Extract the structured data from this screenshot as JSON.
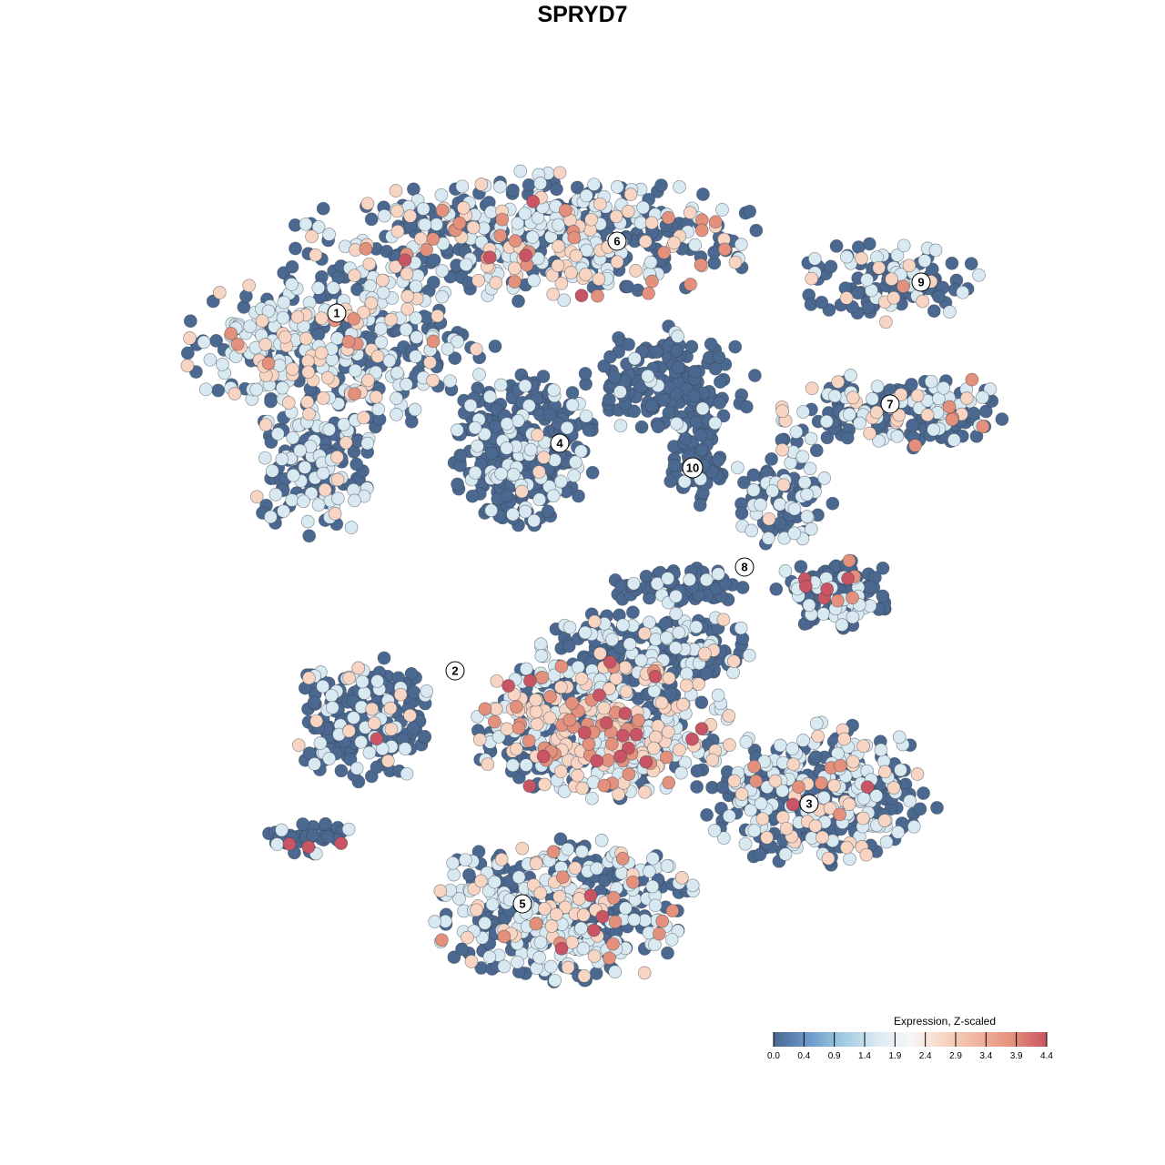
{
  "chart_data": {
    "type": "scatter",
    "title": "SPRYD7",
    "xlabel": "",
    "ylabel": "",
    "axes_visible": false,
    "grid": false,
    "xlim": [
      -9,
      10
    ],
    "ylim": [
      -9.5,
      9.5
    ],
    "color_scale": {
      "title": "Expression, Z-scaled",
      "ticks": [
        "0.0",
        "0.4",
        "0.9",
        "1.4",
        "1.9",
        "2.4",
        "2.9",
        "3.4",
        "3.9",
        "4.4"
      ],
      "range": [
        0.0,
        4.4
      ],
      "colors": [
        "#4a6890",
        "#6b98c8",
        "#9ec9e0",
        "#d9e9f1",
        "#f7f7f7",
        "#f8d5c3",
        "#f0b39c",
        "#e3907c",
        "#c95463"
      ],
      "legend_placement": "bottom-right"
    },
    "expression_levels": {
      "dark": 0.2,
      "light": 1.9,
      "peach": 2.9,
      "salmon": 3.6,
      "red": 4.3
    },
    "cluster_labels": [
      {
        "label": "1",
        "x": -5.4,
        "y": 5.92
      },
      {
        "label": "2",
        "x": -2.8,
        "y": -1.94
      },
      {
        "label": "3",
        "x": 4.98,
        "y": -4.86
      },
      {
        "label": "4",
        "x": -0.5,
        "y": 3.06
      },
      {
        "label": "5",
        "x": -1.32,
        "y": -7.06
      },
      {
        "label": "6",
        "x": 0.76,
        "y": 7.5
      },
      {
        "label": "7",
        "x": 6.76,
        "y": 3.92
      },
      {
        "label": "8",
        "x": 3.56,
        "y": 0.34
      },
      {
        "label": "9",
        "x": 7.44,
        "y": 6.6
      },
      {
        "label": "10",
        "x": 2.42,
        "y": 2.52
      }
    ],
    "point_regions": [
      {
        "cluster": "6",
        "cx": -1.1,
        "cy": 7.6,
        "rx": 5.1,
        "ry": 1.4,
        "n": 500,
        "mix": {
          "dark": 0.45,
          "light": 0.35,
          "peach": 0.15,
          "salmon": 0.04,
          "red": 0.01
        }
      },
      {
        "cluster": "1",
        "cx": -5.36,
        "cy": 5.2,
        "rx": 3.3,
        "ry": 1.8,
        "n": 400,
        "mix": {
          "dark": 0.45,
          "light": 0.38,
          "peach": 0.13,
          "salmon": 0.04,
          "red": 0
        }
      },
      {
        "cluster": "1",
        "cx": -5.9,
        "cy": 2.5,
        "rx": 1.4,
        "ry": 1.5,
        "n": 150,
        "mix": {
          "dark": 0.6,
          "light": 0.35,
          "peach": 0.05,
          "salmon": 0,
          "red": 0
        }
      },
      {
        "cluster": "4",
        "cx": -1.3,
        "cy": 2.9,
        "rx": 1.6,
        "ry": 1.7,
        "n": 350,
        "mix": {
          "dark": 0.82,
          "light": 0.17,
          "peach": 0.01,
          "salmon": 0,
          "red": 0
        }
      },
      {
        "cluster": "4",
        "cx": 1.9,
        "cy": 4.4,
        "rx": 1.9,
        "ry": 1.2,
        "n": 160,
        "mix": {
          "dark": 0.9,
          "light": 0.1,
          "peach": 0,
          "salmon": 0,
          "red": 0
        }
      },
      {
        "cluster": "10",
        "cx": 2.5,
        "cy": 2.7,
        "rx": 0.6,
        "ry": 1.1,
        "n": 70,
        "mix": {
          "dark": 0.9,
          "light": 0.1,
          "peach": 0,
          "salmon": 0,
          "red": 0
        }
      },
      {
        "cluster": "9",
        "cx": 6.7,
        "cy": 6.6,
        "rx": 2.0,
        "ry": 0.9,
        "n": 110,
        "mix": {
          "dark": 0.6,
          "light": 0.25,
          "peach": 0.13,
          "salmon": 0.02,
          "red": 0
        }
      },
      {
        "cluster": "7",
        "cx": 7.0,
        "cy": 3.8,
        "rx": 2.6,
        "ry": 0.9,
        "n": 180,
        "mix": {
          "dark": 0.55,
          "light": 0.33,
          "peach": 0.1,
          "salmon": 0.02,
          "red": 0
        }
      },
      {
        "cluster": "8",
        "cx": 4.4,
        "cy": 2.0,
        "rx": 1.1,
        "ry": 1.2,
        "n": 90,
        "mix": {
          "dark": 0.65,
          "light": 0.3,
          "peach": 0.05,
          "salmon": 0,
          "red": 0
        }
      },
      {
        "cluster": "8",
        "cx": 5.6,
        "cy": -0.2,
        "rx": 1.3,
        "ry": 0.8,
        "n": 130,
        "mix": {
          "dark": 0.75,
          "light": 0.2,
          "peach": 0,
          "salmon": 0.03,
          "red": 0.02
        }
      },
      {
        "cluster": "8",
        "cx": 2.2,
        "cy": -0.1,
        "rx": 1.5,
        "ry": 0.5,
        "n": 70,
        "mix": {
          "dark": 0.85,
          "light": 0.15,
          "peach": 0,
          "salmon": 0,
          "red": 0
        }
      },
      {
        "cluster": "2",
        "cx": -4.8,
        "cy": -3.0,
        "rx": 1.6,
        "ry": 1.4,
        "n": 220,
        "mix": {
          "dark": 0.75,
          "light": 0.18,
          "peach": 0.06,
          "salmon": 0,
          "red": 0.01
        }
      },
      {
        "cluster": "2",
        "cx": -6.0,
        "cy": -5.6,
        "rx": 1.0,
        "ry": 0.4,
        "n": 40,
        "mix": {
          "dark": 0.9,
          "light": 0.05,
          "peach": 0,
          "salmon": 0,
          "red": 0.05
        }
      },
      {
        "cluster": "central",
        "cx": 0.4,
        "cy": -3.2,
        "rx": 2.8,
        "ry": 1.6,
        "n": 550,
        "mix": {
          "dark": 0.35,
          "light": 0.35,
          "peach": 0.18,
          "salmon": 0.08,
          "red": 0.04
        }
      },
      {
        "cluster": "central",
        "cx": 1.6,
        "cy": -1.4,
        "rx": 2.5,
        "ry": 0.8,
        "n": 200,
        "mix": {
          "dark": 0.7,
          "light": 0.25,
          "peach": 0.05,
          "salmon": 0,
          "red": 0
        }
      },
      {
        "cluster": "3",
        "cx": 5.2,
        "cy": -4.6,
        "rx": 2.6,
        "ry": 1.6,
        "n": 400,
        "mix": {
          "dark": 0.55,
          "light": 0.35,
          "peach": 0.08,
          "salmon": 0.015,
          "red": 0.005
        }
      },
      {
        "cluster": "5",
        "cx": -0.4,
        "cy": -7.2,
        "rx": 3.0,
        "ry": 1.6,
        "n": 450,
        "mix": {
          "dark": 0.5,
          "light": 0.38,
          "peach": 0.08,
          "salmon": 0.03,
          "red": 0.01
        }
      }
    ]
  }
}
